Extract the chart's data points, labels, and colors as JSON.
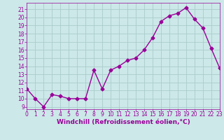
{
  "x": [
    0,
    1,
    2,
    3,
    4,
    5,
    6,
    7,
    8,
    9,
    10,
    11,
    12,
    13,
    14,
    15,
    16,
    17,
    18,
    19,
    20,
    21,
    22,
    23
  ],
  "y": [
    11.2,
    10.0,
    9.0,
    10.5,
    10.3,
    10.0,
    10.0,
    10.0,
    13.5,
    11.2,
    13.5,
    14.0,
    14.7,
    15.0,
    16.0,
    17.5,
    19.5,
    20.2,
    20.5,
    21.2,
    19.8,
    18.7,
    16.2,
    13.8
  ],
  "xlim": [
    0,
    23
  ],
  "ylim": [
    8.7,
    21.8
  ],
  "yticks": [
    9,
    10,
    11,
    12,
    13,
    14,
    15,
    16,
    17,
    18,
    19,
    20,
    21
  ],
  "xticks": [
    0,
    1,
    2,
    3,
    4,
    5,
    6,
    7,
    8,
    9,
    10,
    11,
    12,
    13,
    14,
    15,
    16,
    17,
    18,
    19,
    20,
    21,
    22,
    23
  ],
  "line_color": "#990099",
  "marker": "D",
  "marker_size": 2.5,
  "bg_color": "#cce8e8",
  "grid_color": "#aacccc",
  "xlabel": "Windchill (Refroidissement éolien,°C)",
  "xlabel_color": "#990099",
  "tick_label_color": "#990099",
  "tick_label_fontsize": 5.5,
  "xlabel_fontsize": 6.5,
  "line_width": 1.0
}
